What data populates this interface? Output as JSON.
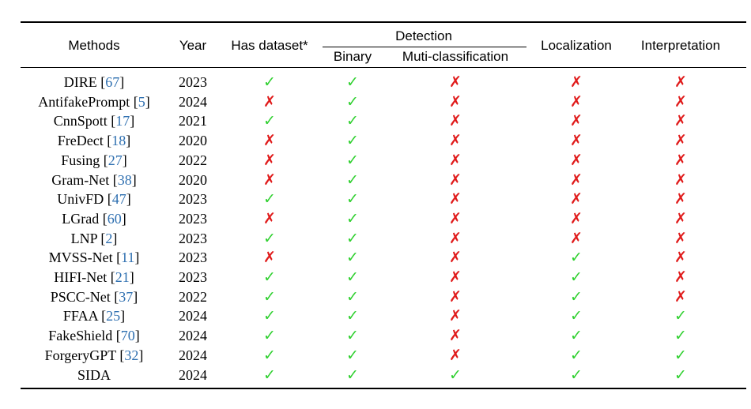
{
  "table": {
    "headers": {
      "methods": "Methods",
      "year": "Year",
      "has_dataset": "Has dataset*",
      "detection": "Detection",
      "binary": "Binary",
      "multi": "Muti-classification",
      "localization": "Localization",
      "interpretation": "Interpretation"
    },
    "symbols": {
      "yes": "✓",
      "no": "✗"
    },
    "colors": {
      "yes": "#2fd02f",
      "no": "#e01b1b",
      "ref": "#2e6fb0"
    },
    "rows": [
      {
        "name": "DIRE",
        "ref": "67",
        "year": "2023",
        "has_dataset": true,
        "binary": true,
        "multi": false,
        "localization": false,
        "interpretation": false
      },
      {
        "name": "AntifakePrompt",
        "ref": "5",
        "year": "2024",
        "has_dataset": false,
        "binary": true,
        "multi": false,
        "localization": false,
        "interpretation": false
      },
      {
        "name": "CnnSpott",
        "ref": "17",
        "year": "2021",
        "has_dataset": true,
        "binary": true,
        "multi": false,
        "localization": false,
        "interpretation": false
      },
      {
        "name": "FreDect",
        "ref": "18",
        "year": "2020",
        "has_dataset": false,
        "binary": true,
        "multi": false,
        "localization": false,
        "interpretation": false
      },
      {
        "name": "Fusing",
        "ref": "27",
        "year": "2022",
        "has_dataset": false,
        "binary": true,
        "multi": false,
        "localization": false,
        "interpretation": false
      },
      {
        "name": "Gram-Net",
        "ref": "38",
        "year": "2020",
        "has_dataset": false,
        "binary": true,
        "multi": false,
        "localization": false,
        "interpretation": false
      },
      {
        "name": "UnivFD",
        "ref": "47",
        "year": "2023",
        "has_dataset": true,
        "binary": true,
        "multi": false,
        "localization": false,
        "interpretation": false
      },
      {
        "name": "LGrad",
        "ref": "60",
        "year": "2023",
        "has_dataset": false,
        "binary": true,
        "multi": false,
        "localization": false,
        "interpretation": false
      },
      {
        "name": "LNP",
        "ref": "2",
        "year": "2023",
        "has_dataset": true,
        "binary": true,
        "multi": false,
        "localization": false,
        "interpretation": false
      },
      {
        "name": "MVSS-Net",
        "ref": "11",
        "year": "2023",
        "has_dataset": false,
        "binary": true,
        "multi": false,
        "localization": true,
        "interpretation": false
      },
      {
        "name": "HIFI-Net",
        "ref": "21",
        "year": "2023",
        "has_dataset": true,
        "binary": true,
        "multi": false,
        "localization": true,
        "interpretation": false
      },
      {
        "name": "PSCC-Net",
        "ref": "37",
        "year": "2022",
        "has_dataset": true,
        "binary": true,
        "multi": false,
        "localization": true,
        "interpretation": false
      },
      {
        "name": "FFAA",
        "ref": "25",
        "year": "2024",
        "has_dataset": true,
        "binary": true,
        "multi": false,
        "localization": true,
        "interpretation": true
      },
      {
        "name": "FakeShield",
        "ref": "70",
        "year": "2024",
        "has_dataset": true,
        "binary": true,
        "multi": false,
        "localization": true,
        "interpretation": true
      },
      {
        "name": "ForgeryGPT",
        "ref": "32",
        "year": "2024",
        "has_dataset": true,
        "binary": true,
        "multi": false,
        "localization": true,
        "interpretation": true
      },
      {
        "name": "SIDA",
        "ref": "",
        "year": "2024",
        "has_dataset": true,
        "binary": true,
        "multi": true,
        "localization": true,
        "interpretation": true
      }
    ]
  }
}
